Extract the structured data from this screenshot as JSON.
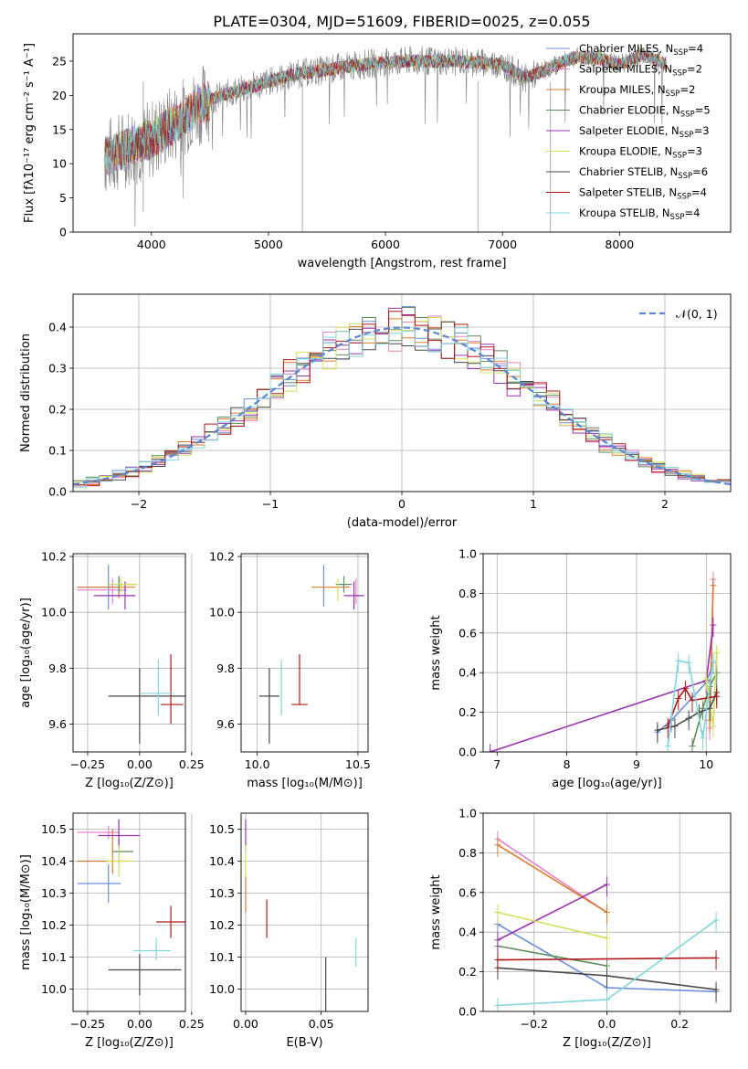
{
  "figure": {
    "title": "PLATE=0304, MJD=51609, FIBERID=0025, z=0.055"
  },
  "models": [
    {
      "key": "chabrier_miles",
      "name": "Chabrier MILES, N",
      "nssp": "4",
      "color": "#6a8edb"
    },
    {
      "key": "salpeter_miles",
      "name": "Salpeter MILES, N",
      "nssp": "2",
      "color": "#e384c8"
    },
    {
      "key": "kroupa_miles",
      "name": "Kroupa MILES, N",
      "nssp": "2",
      "color": "#e07b2c"
    },
    {
      "key": "chabrier_elodie",
      "name": "Chabrier ELODIE, N",
      "nssp": "5",
      "color": "#5c8c5a"
    },
    {
      "key": "salpeter_elodie",
      "name": "Salpeter ELODIE, N",
      "nssp": "3",
      "color": "#9a32b0"
    },
    {
      "key": "kroupa_elodie",
      "name": "Kroupa ELODIE, N",
      "nssp": "3",
      "color": "#d4e05a"
    },
    {
      "key": "chabrier_stelib",
      "name": "Chabrier STELIB, N",
      "nssp": "6",
      "color": "#4a4a4a"
    },
    {
      "key": "salpeter_stelib",
      "name": "Salpeter STELIB, N",
      "nssp": "4",
      "color": "#b01818"
    },
    {
      "key": "kroupa_stelib",
      "name": "Kroupa STELIB, N",
      "nssp": "4",
      "color": "#7fd6dc"
    }
  ],
  "chart_data": [
    {
      "id": "spectrum",
      "type": "line",
      "xlabel": "wavelength [Angstrom, rest frame]",
      "ylabel": "Flux [fλ10⁻¹⁷ erg cm⁻² s⁻¹ A⁻¹]",
      "xlim": [
        3330,
        8950
      ],
      "ylim": [
        0,
        29
      ],
      "xticks": [
        "4000",
        "5000",
        "6000",
        "7000",
        "8000"
      ],
      "yticks": [
        "0",
        "5",
        "10",
        "15",
        "20",
        "25"
      ],
      "x_range_data": [
        3600,
        8400
      ],
      "continuum": {
        "x": [
          3600,
          3700,
          3800,
          3900,
          4000,
          4200,
          4400,
          4600,
          4800,
          5000,
          5200,
          5400,
          5600,
          5800,
          6000,
          6200,
          6400,
          6600,
          6800,
          7000,
          7200,
          7400,
          7600,
          7800,
          8000,
          8200,
          8400
        ],
        "y": [
          11.0,
          11.5,
          12.5,
          13.0,
          13.5,
          16.0,
          18.5,
          20.0,
          21.0,
          22.0,
          23.0,
          23.5,
          24.0,
          24.5,
          24.8,
          25.0,
          25.0,
          25.0,
          24.8,
          24.5,
          22.5,
          24.0,
          25.5,
          25.5,
          24.5,
          26.0,
          24.5
        ]
      },
      "series": [
        {
          "name": "data",
          "color": "#808080"
        }
      ],
      "grid": false,
      "legend": "top-right"
    },
    {
      "id": "residual_hist",
      "type": "histogram",
      "xlabel": "(data-model)/error",
      "ylabel": "Normed distribution",
      "xlim": [
        -2.5,
        2.5
      ],
      "ylim": [
        0,
        0.48
      ],
      "xticks": [
        "−2",
        "−1",
        "0",
        "1",
        "2"
      ],
      "yticks": [
        "0.0",
        "0.1",
        "0.2",
        "0.3",
        "0.4"
      ],
      "bin_width": 0.1,
      "reference": {
        "label": "𝒩(0, 1)",
        "mu": 0,
        "sigma": 1,
        "color": "#5b86d6"
      },
      "grid": true,
      "legend": "top-right"
    },
    {
      "id": "age_vs_Z",
      "type": "scatter",
      "xlabel": "Z [log₁₀(Z/Z⊙)]",
      "ylabel": "age  [log₁₀(age/yr)]",
      "xlim": [
        -0.32,
        0.22
      ],
      "ylim": [
        9.5,
        10.21
      ],
      "xticks": [
        "−0.25",
        "0.00",
        "0.25"
      ],
      "yticks": [
        "9.6",
        "9.8",
        "10.0",
        "10.2"
      ],
      "points": [
        {
          "model": "chabrier_miles",
          "x": -0.15,
          "y": 10.09,
          "xerr": [
            0.15,
            0.05
          ],
          "yerr": [
            0.08,
            0.08
          ]
        },
        {
          "model": "salpeter_miles",
          "x": -0.13,
          "y": 10.08,
          "xerr": [
            0.17,
            0.07
          ],
          "yerr": [
            0.05,
            0.04
          ]
        },
        {
          "model": "kroupa_miles",
          "x": -0.1,
          "y": 10.09,
          "xerr": [
            0.2,
            0.08
          ],
          "yerr": [
            0.04,
            0.04
          ]
        },
        {
          "model": "chabrier_elodie",
          "x": -0.1,
          "y": 10.1,
          "xerr": [
            0.05,
            0.08
          ],
          "yerr": [
            0.03,
            0.03
          ]
        },
        {
          "model": "salpeter_elodie",
          "x": -0.07,
          "y": 10.06,
          "xerr": [
            0.15,
            0.05
          ],
          "yerr": [
            0.05,
            0.05
          ]
        },
        {
          "model": "kroupa_elodie",
          "x": -0.09,
          "y": 10.1,
          "xerr": [
            0.06,
            0.08
          ],
          "yerr": [
            0.03,
            0.02
          ]
        },
        {
          "model": "chabrier_stelib",
          "x": 0.0,
          "y": 9.7,
          "xerr": [
            0.15,
            0.25
          ],
          "yerr": [
            0.17,
            0.1
          ]
        },
        {
          "model": "salpeter_stelib",
          "x": 0.15,
          "y": 9.67,
          "xerr": [
            0.05,
            0.06
          ],
          "yerr": [
            0.07,
            0.18
          ]
        },
        {
          "model": "kroupa_stelib",
          "x": 0.09,
          "y": 9.71,
          "xerr": [
            0.09,
            0.07
          ],
          "yerr": [
            0.08,
            0.12
          ]
        }
      ],
      "grid": true
    },
    {
      "id": "age_vs_mass",
      "type": "scatter",
      "xlabel": "mass [log₁₀(M/M⊙)]",
      "ylabel": "",
      "xlim": [
        9.92,
        10.55
      ],
      "ylim": [
        9.5,
        10.21
      ],
      "xticks": [
        "10.0",
        "10.5"
      ],
      "yticks": [
        "9.6",
        "9.8",
        "10.0",
        "10.2"
      ],
      "points": [
        {
          "model": "chabrier_miles",
          "x": 10.33,
          "y": 10.09,
          "xerr": [
            0.0,
            0.0
          ],
          "yerr": [
            0.07,
            0.08
          ]
        },
        {
          "model": "salpeter_miles",
          "x": 10.49,
          "y": 10.08,
          "xerr": [
            0.0,
            0.0
          ],
          "yerr": [
            0.05,
            0.04
          ]
        },
        {
          "model": "kroupa_miles",
          "x": 10.4,
          "y": 10.09,
          "xerr": [
            0.13,
            0.06
          ],
          "yerr": [
            0.0,
            0.0
          ]
        },
        {
          "model": "chabrier_elodie",
          "x": 10.43,
          "y": 10.1,
          "xerr": [
            0.04,
            0.04
          ],
          "yerr": [
            0.03,
            0.03
          ]
        },
        {
          "model": "salpeter_elodie",
          "x": 10.48,
          "y": 10.06,
          "xerr": [
            0.05,
            0.05
          ],
          "yerr": [
            0.05,
            0.05
          ]
        },
        {
          "model": "kroupa_elodie",
          "x": 10.4,
          "y": 10.1,
          "xerr": [
            0.0,
            0.0
          ],
          "yerr": [
            0.06,
            0.02
          ]
        },
        {
          "model": "chabrier_stelib",
          "x": 10.06,
          "y": 9.7,
          "xerr": [
            0.05,
            0.05
          ],
          "yerr": [
            0.17,
            0.1
          ]
        },
        {
          "model": "salpeter_stelib",
          "x": 10.21,
          "y": 9.67,
          "xerr": [
            0.04,
            0.04
          ],
          "yerr": [
            0.0,
            0.18
          ]
        },
        {
          "model": "kroupa_stelib",
          "x": 10.12,
          "y": 9.71,
          "xerr": [
            0.0,
            0.0
          ],
          "yerr": [
            0.08,
            0.12
          ]
        }
      ],
      "grid": true
    },
    {
      "id": "weight_vs_age",
      "type": "line",
      "xlabel": "age  [log₁₀(age/yr)]",
      "ylabel": "mass weight",
      "xlim": [
        6.8,
        10.35
      ],
      "ylim": [
        0,
        1.0
      ],
      "xticks": [
        "7",
        "8",
        "9",
        "10"
      ],
      "yticks": [
        "0.0",
        "0.2",
        "0.4",
        "0.6",
        "0.8",
        "1.0"
      ],
      "series": [
        {
          "model": "chabrier_miles",
          "x": [
            9.3,
            9.5,
            10.0,
            10.1
          ],
          "y": [
            0.1,
            0.16,
            0.35,
            0.45
          ]
        },
        {
          "model": "salpeter_miles",
          "x": [
            10.05,
            10.1
          ],
          "y": [
            0.12,
            0.87
          ]
        },
        {
          "model": "kroupa_miles",
          "x": [
            10.05,
            10.1
          ],
          "y": [
            0.16,
            0.84
          ]
        },
        {
          "model": "chabrier_elodie",
          "x": [
            9.8,
            9.95,
            10.05,
            10.15
          ],
          "y": [
            0.03,
            0.22,
            0.33,
            0.4
          ]
        },
        {
          "model": "salpeter_elodie",
          "x": [
            6.9,
            10.0,
            10.1
          ],
          "y": [
            0.0,
            0.36,
            0.64
          ]
        },
        {
          "model": "kroupa_elodie",
          "x": [
            10.0,
            10.1,
            10.15
          ],
          "y": [
            0.37,
            0.13,
            0.5
          ]
        },
        {
          "model": "chabrier_stelib",
          "x": [
            9.3,
            9.55,
            9.75,
            9.9,
            10.05,
            10.15
          ],
          "y": [
            0.11,
            0.13,
            0.17,
            0.2,
            0.22,
            0.3
          ]
        },
        {
          "model": "salpeter_stelib",
          "x": [
            9.45,
            9.6,
            9.7,
            9.8,
            10.15
          ],
          "y": [
            0.13,
            0.27,
            0.32,
            0.26,
            0.28
          ]
        },
        {
          "model": "kroupa_stelib",
          "x": [
            9.45,
            9.6,
            9.75,
            9.95,
            10.1
          ],
          "y": [
            0.03,
            0.46,
            0.45,
            0.07,
            0.46
          ]
        }
      ],
      "grid": true
    },
    {
      "id": "mass_vs_Z",
      "type": "scatter",
      "xlabel": "Z [log₁₀(Z/Z⊙)]",
      "ylabel": "mass [log₁₀(M/M⊙)]",
      "xlim": [
        -0.32,
        0.22
      ],
      "ylim": [
        9.93,
        10.55
      ],
      "xticks": [
        "−0.25",
        "0.00",
        "0.25"
      ],
      "yticks": [
        "10.0",
        "10.1",
        "10.2",
        "10.3",
        "10.4",
        "10.5"
      ],
      "points": [
        {
          "model": "chabrier_miles",
          "x": -0.15,
          "y": 10.33,
          "xerr": [
            0.15,
            0.06
          ],
          "yerr": [
            0.06,
            0.06
          ]
        },
        {
          "model": "salpeter_miles",
          "x": -0.15,
          "y": 10.49,
          "xerr": [
            0.15,
            0.05
          ],
          "yerr": [
            0.02,
            0.02
          ]
        },
        {
          "model": "kroupa_miles",
          "x": -0.13,
          "y": 10.4,
          "xerr": [
            0.17,
            0.07
          ],
          "yerr": [
            0.04,
            0.1
          ]
        },
        {
          "model": "chabrier_elodie",
          "x": -0.1,
          "y": 10.43,
          "xerr": [
            0.03,
            0.07
          ],
          "yerr": [
            0.04,
            0.04
          ]
        },
        {
          "model": "salpeter_elodie",
          "x": -0.1,
          "y": 10.48,
          "xerr": [
            0.1,
            0.1
          ],
          "yerr": [
            0.05,
            0.05
          ]
        },
        {
          "model": "kroupa_elodie",
          "x": -0.1,
          "y": 10.4,
          "xerr": [
            0.06,
            0.07
          ],
          "yerr": [
            0.05,
            0.05
          ]
        },
        {
          "model": "chabrier_stelib",
          "x": 0.0,
          "y": 10.06,
          "xerr": [
            0.15,
            0.2
          ],
          "yerr": [
            0.08,
            0.05
          ]
        },
        {
          "model": "salpeter_stelib",
          "x": 0.15,
          "y": 10.21,
          "xerr": [
            0.07,
            0.07
          ],
          "yerr": [
            0.05,
            0.05
          ]
        },
        {
          "model": "kroupa_stelib",
          "x": 0.08,
          "y": 10.12,
          "xerr": [
            0.11,
            0.07
          ],
          "yerr": [
            0.03,
            0.04
          ]
        }
      ],
      "grid": true
    },
    {
      "id": "mass_vs_ebv",
      "type": "scatter",
      "xlabel": "E(B-V)",
      "ylabel": "",
      "xlim": [
        -0.003,
        0.081
      ],
      "ylim": [
        9.93,
        10.55
      ],
      "xticks": [
        "0.00",
        "0.05"
      ],
      "yticks": [
        "10.0",
        "10.1",
        "10.2",
        "10.3",
        "10.4",
        "10.5"
      ],
      "points": [
        {
          "model": "salpeter_elodie",
          "x": 0.0,
          "y": 10.48,
          "xerr": [
            0.0,
            0.0
          ],
          "yerr": [
            0.05,
            0.05
          ]
        },
        {
          "model": "kroupa_miles",
          "x": 0.0,
          "y": 10.3,
          "xerr": [
            0.0,
            0.0
          ],
          "yerr": [
            0.06,
            0.06
          ]
        },
        {
          "model": "kroupa_elodie",
          "x": 0.0,
          "y": 10.4,
          "xerr": [
            0.0,
            0.0
          ],
          "yerr": [
            0.05,
            0.05
          ]
        },
        {
          "model": "salpeter_stelib",
          "x": 0.014,
          "y": 10.22,
          "xerr": [
            0.0,
            0.0
          ],
          "yerr": [
            0.06,
            0.06
          ]
        },
        {
          "model": "chabrier_stelib",
          "x": 0.053,
          "y": 10.0,
          "xerr": [
            0.0,
            0.0
          ],
          "yerr": [
            0.08,
            0.1
          ]
        },
        {
          "model": "kroupa_stelib",
          "x": 0.073,
          "y": 10.11,
          "xerr": [
            0.0,
            0.0
          ],
          "yerr": [
            0.04,
            0.05
          ]
        }
      ],
      "grid": true
    },
    {
      "id": "weight_vs_Z",
      "type": "line",
      "xlabel": "Z [log₁₀(Z/Z⊙)]",
      "ylabel": "mass weight",
      "xlim": [
        -0.34,
        0.34
      ],
      "ylim": [
        0,
        1.0
      ],
      "xticks": [
        "−0.2",
        "0.0",
        "0.2"
      ],
      "yticks": [
        "0.0",
        "0.2",
        "0.4",
        "0.6",
        "0.8",
        "1.0"
      ],
      "series": [
        {
          "model": "chabrier_miles",
          "x": [
            -0.3,
            0.0,
            0.3
          ],
          "y": [
            0.44,
            0.12,
            0.1
          ]
        },
        {
          "model": "salpeter_miles",
          "x": [
            -0.3,
            0.0
          ],
          "y": [
            0.87,
            0.5
          ]
        },
        {
          "model": "kroupa_miles",
          "x": [
            -0.3,
            0.0
          ],
          "y": [
            0.84,
            0.5
          ]
        },
        {
          "model": "chabrier_elodie",
          "x": [
            -0.3,
            0.0
          ],
          "y": [
            0.33,
            0.23
          ]
        },
        {
          "model": "salpeter_elodie",
          "x": [
            -0.3,
            0.0
          ],
          "y": [
            0.36,
            0.64
          ]
        },
        {
          "model": "kroupa_elodie",
          "x": [
            -0.3,
            0.0
          ],
          "y": [
            0.5,
            0.37
          ]
        },
        {
          "model": "chabrier_stelib",
          "x": [
            -0.3,
            0.0,
            0.3
          ],
          "y": [
            0.22,
            0.18,
            0.11
          ]
        },
        {
          "model": "salpeter_stelib",
          "x": [
            -0.3,
            0.3
          ],
          "y": [
            0.26,
            0.27
          ]
        },
        {
          "model": "kroupa_stelib",
          "x": [
            -0.3,
            0.0,
            0.3
          ],
          "y": [
            0.03,
            0.06,
            0.46
          ]
        }
      ],
      "grid": true
    }
  ]
}
